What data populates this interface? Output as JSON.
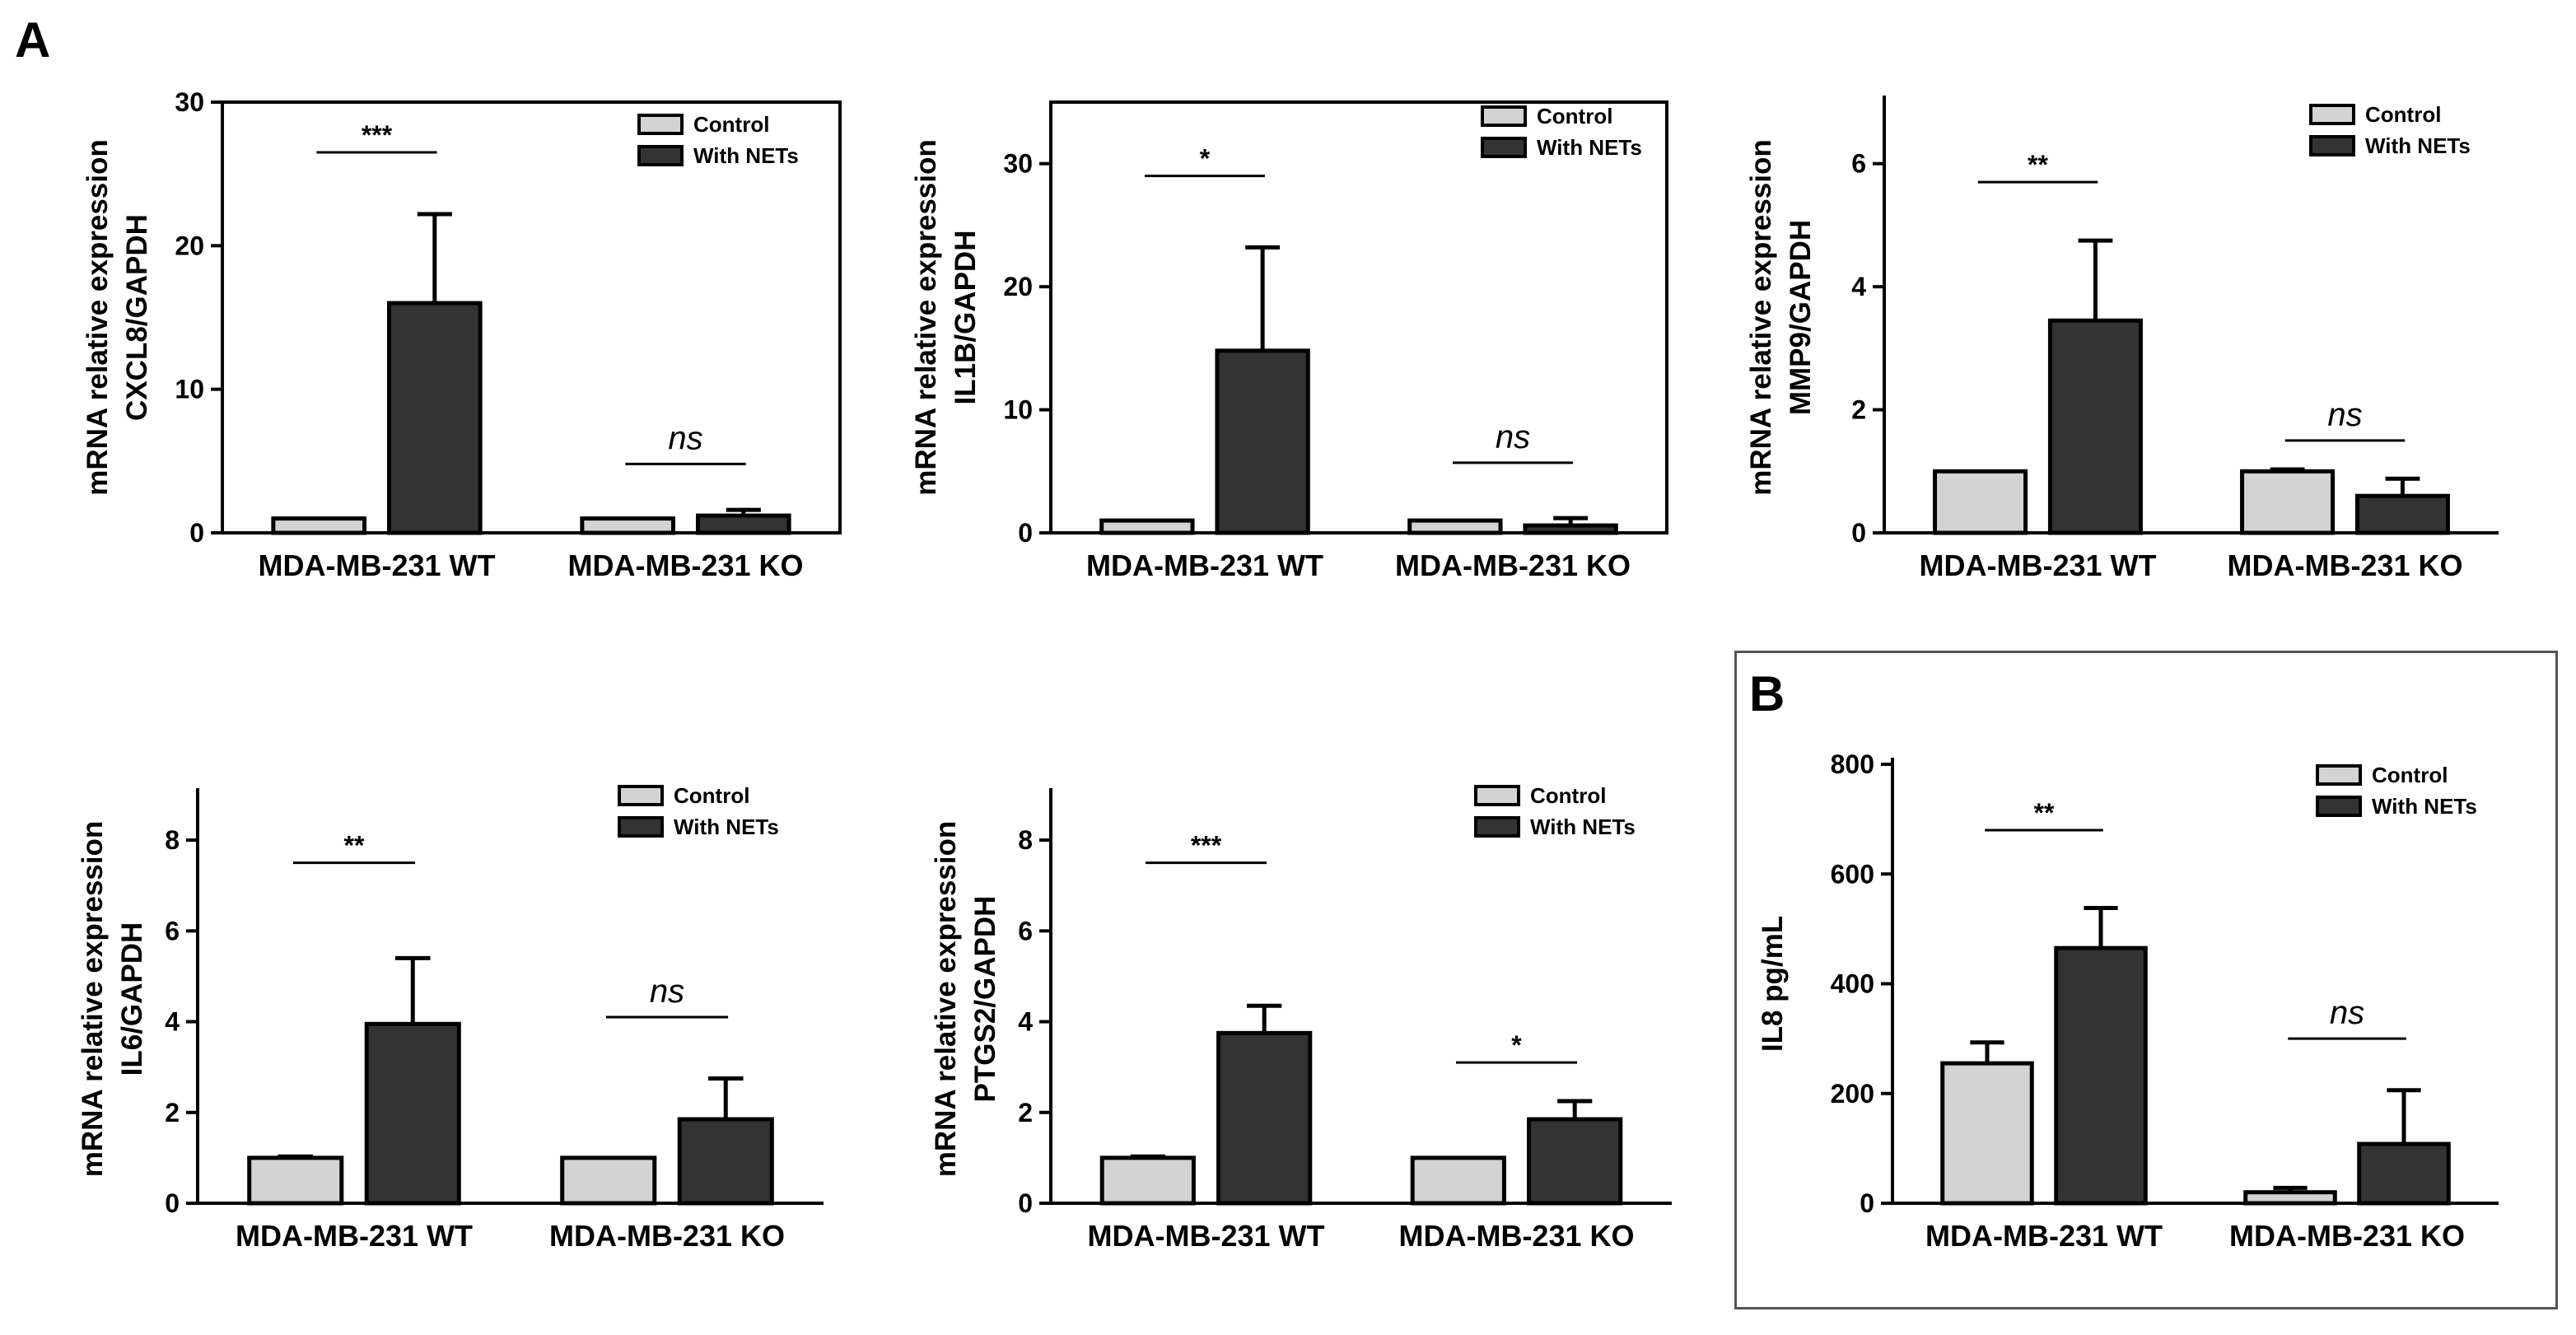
{
  "panel_labels": {
    "a": "A",
    "b": "B"
  },
  "legend": {
    "control": "Control",
    "nets": "With NETs"
  },
  "colors": {
    "control": "#d3d3d3",
    "nets": "#333333",
    "ink": "#000000"
  },
  "chart_data": [
    {
      "type": "bar",
      "id": "cxcl8",
      "panel": "A",
      "ylabel": [
        "mRNA relative expression",
        "CXCL8/GAPDH"
      ],
      "categories": [
        "MDA-MB-231 WT",
        "MDA-MB-231 KO"
      ],
      "yticks": [
        0,
        10,
        20,
        30
      ],
      "ylim": [
        0,
        30
      ],
      "series": [
        {
          "name": "Control",
          "values": [
            1.0,
            1.0
          ],
          "errors": [
            0,
            0
          ]
        },
        {
          "name": "With NETs",
          "values": [
            16.0,
            1.2
          ],
          "errors": [
            6.2,
            0.4
          ]
        }
      ],
      "annotations": [
        {
          "category": 0,
          "text": "***",
          "y": 26.5
        },
        {
          "category": 1,
          "text": "ns",
          "y": 4.8
        }
      ]
    },
    {
      "type": "bar",
      "id": "il1b",
      "panel": "A",
      "ylabel": [
        "mRNA relative expression",
        "IL1B/GAPDH"
      ],
      "categories": [
        "MDA-MB-231 WT",
        "MDA-MB-231 KO"
      ],
      "yticks": [
        0,
        10,
        20,
        30
      ],
      "ylim": [
        0,
        35
      ],
      "series": [
        {
          "name": "Control",
          "values": [
            1.0,
            1.0
          ],
          "errors": [
            0,
            0
          ]
        },
        {
          "name": "With NETs",
          "values": [
            14.8,
            0.6
          ],
          "errors": [
            8.4,
            0.6
          ]
        }
      ],
      "annotations": [
        {
          "category": 0,
          "text": "*",
          "y": 29.0
        },
        {
          "category": 1,
          "text": "ns",
          "y": 5.7
        }
      ]
    },
    {
      "type": "bar",
      "id": "mmp9",
      "panel": "A",
      "ylabel": [
        "mRNA relative expression",
        "MMP9/GAPDH"
      ],
      "categories": [
        "MDA-MB-231 WT",
        "MDA-MB-231 KO"
      ],
      "yticks": [
        0,
        2,
        4,
        6
      ],
      "ylim": [
        0,
        7
      ],
      "series": [
        {
          "name": "Control",
          "values": [
            1.0,
            1.0
          ],
          "errors": [
            0,
            0.03
          ]
        },
        {
          "name": "With NETs",
          "values": [
            3.45,
            0.6
          ],
          "errors": [
            1.3,
            0.28
          ]
        }
      ],
      "annotations": [
        {
          "category": 0,
          "text": "**",
          "y": 5.7
        },
        {
          "category": 1,
          "text": "ns",
          "y": 1.5
        }
      ]
    },
    {
      "type": "bar",
      "id": "il6",
      "panel": "A",
      "ylabel": [
        "mRNA relative expression",
        "IL6/GAPDH"
      ],
      "categories": [
        "MDA-MB-231 WT",
        "MDA-MB-231 KO"
      ],
      "yticks": [
        0,
        2,
        4,
        6,
        8
      ],
      "ylim": [
        0,
        9
      ],
      "series": [
        {
          "name": "Control",
          "values": [
            1.0,
            1.0
          ],
          "errors": [
            0.03,
            0
          ]
        },
        {
          "name": "With NETs",
          "values": [
            3.95,
            1.85
          ],
          "errors": [
            1.45,
            0.9
          ]
        }
      ],
      "annotations": [
        {
          "category": 0,
          "text": "**",
          "y": 7.5
        },
        {
          "category": 1,
          "text": "ns",
          "y": 4.1
        }
      ]
    },
    {
      "type": "bar",
      "id": "ptgs2",
      "panel": "A",
      "ylabel": [
        "mRNA relative expression",
        "PTGS2/GAPDH"
      ],
      "categories": [
        "MDA-MB-231 WT",
        "MDA-MB-231 KO"
      ],
      "yticks": [
        0,
        2,
        4,
        6,
        8
      ],
      "ylim": [
        0,
        9
      ],
      "series": [
        {
          "name": "Control",
          "values": [
            1.0,
            1.0
          ],
          "errors": [
            0.03,
            0
          ]
        },
        {
          "name": "With NETs",
          "values": [
            3.75,
            1.85
          ],
          "errors": [
            0.6,
            0.4
          ]
        }
      ],
      "annotations": [
        {
          "category": 0,
          "text": "***",
          "y": 7.5
        },
        {
          "category": 1,
          "text": "*",
          "y": 3.1
        }
      ]
    },
    {
      "type": "bar",
      "id": "il8",
      "panel": "B",
      "ylabel": [
        "IL8 pg/mL"
      ],
      "categories": [
        "MDA-MB-231 WT",
        "MDA-MB-231 KO"
      ],
      "yticks": [
        0,
        200,
        400,
        600,
        800
      ],
      "ylim": [
        0,
        800
      ],
      "series": [
        {
          "name": "Control",
          "values": [
            255,
            20
          ],
          "errors": [
            38,
            8
          ]
        },
        {
          "name": "With NETs",
          "values": [
            465,
            108
          ],
          "errors": [
            73,
            98
          ]
        }
      ],
      "annotations": [
        {
          "category": 0,
          "text": "**",
          "y": 680
        },
        {
          "category": 1,
          "text": "ns",
          "y": 300
        }
      ]
    }
  ]
}
